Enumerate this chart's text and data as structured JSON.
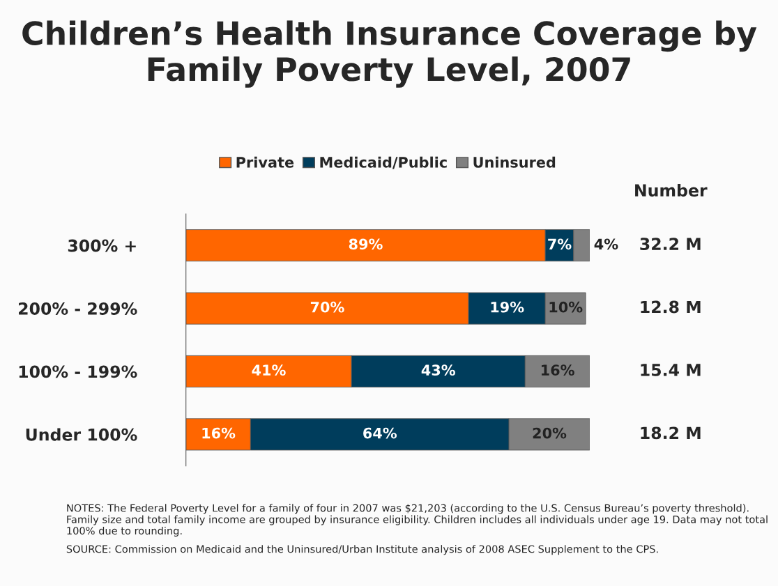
{
  "chart_data": {
    "type": "bar",
    "orientation": "horizontal",
    "stacked": true,
    "title": "Children’s Health Insurance Coverage by Family Poverty Level, 2007",
    "categories": [
      "300% +",
      "200% - 299%",
      "100% - 199%",
      "Under 100%"
    ],
    "series": [
      {
        "name": "Private",
        "color": "#ff6600",
        "values": [
          89,
          70,
          41,
          16
        ],
        "value_labels": [
          "89%",
          "70%",
          "41%",
          "16%"
        ]
      },
      {
        "name": "Medicaid/Public",
        "color": "#003d5c",
        "values": [
          7,
          19,
          43,
          64
        ],
        "value_labels": [
          "7%",
          "19%",
          "43%",
          "64%"
        ]
      },
      {
        "name": "Uninsured",
        "color": "#808080",
        "values": [
          4,
          10,
          16,
          20
        ],
        "value_labels": [
          "4%",
          "10%",
          "16%",
          "20%"
        ]
      }
    ],
    "xlim": [
      0,
      100
    ],
    "tick_labels": "y",
    "legend": "top",
    "annotations": [
      "Number",
      "32.2 M",
      "12.8 M",
      "15.4 M",
      "18.2 M",
      "NOTES: The Federal Poverty Level for a family of four in 2007 was $21,203 (according to the U.S. Census Bureau’s poverty threshold). Family size and total family income are grouped by insurance eligibility. Children includes all individuals under age 19. Data may not total 100% due to rounding.",
      "SOURCE: Commission on Medicaid and the Uninsured/Urban Institute analysis of 2008 ASEC Supplement to the CPS."
    ]
  }
}
